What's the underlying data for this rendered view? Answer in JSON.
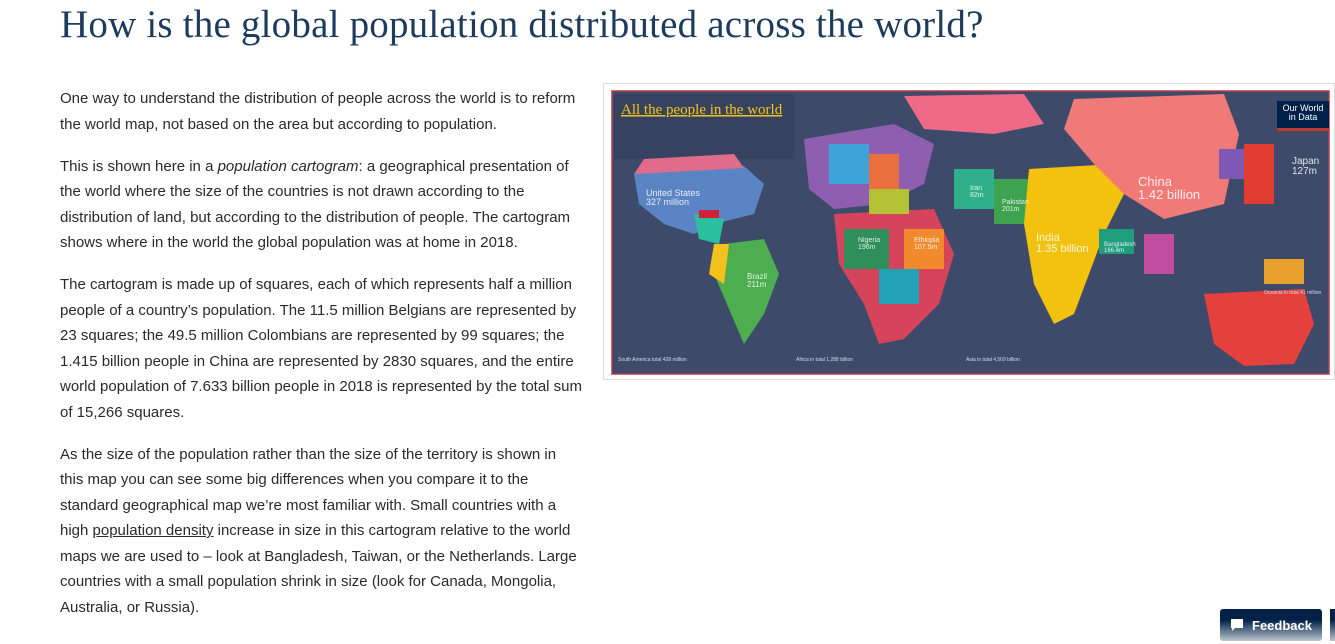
{
  "header": {
    "title": "How is the global population distributed across the world?"
  },
  "paragraphs": [
    [
      {
        "text": "One way to understand the distribution of people across the world is to reform the world map, not based on the area but according to population."
      }
    ],
    [
      {
        "text": "This is shown here in a "
      },
      {
        "text": "population cartogram",
        "em": true
      },
      {
        "text": ": a geographical presentation of the world where the size of the countries is not drawn according to the distribution of land, but according to the distribution of people. The cartogram shows where in the world the global population was at home in 2018."
      }
    ],
    [
      {
        "text": "The cartogram is made up of squares, each of which represents half a million people of a country’s population. The 11.5 million Belgians are represented by 23 squares; the 49.5 million Colombians are represented by 99 squares; the 1.415 billion people in China are represented by 2830 squares, and the entire world population of 7.633 billion people in 2018 is represented by the total sum of 15,266 squares."
      }
    ],
    [
      {
        "text": "As the size of the population rather than the size of the territory is shown in this map you can see some big differences when you compare it to the standard geographical map we’re most familiar with. Small countries with a high "
      },
      {
        "text": "population density",
        "link": true
      },
      {
        "text": " increase in size in this cartogram relative to the world maps we are used to – look at Bangladesh, Taiwan, or the Netherlands. Large countries with a small population shrink in size (look for Canada, Mongolia, Australia, or Russia)."
      }
    ]
  ],
  "map": {
    "title": "All the people in the world",
    "logo": [
      "Our World",
      "in Data"
    ],
    "labels": [
      {
        "name": "China",
        "value": "1.42 billion"
      },
      {
        "name": "India",
        "value": "1.35 billion"
      },
      {
        "name": "United States",
        "value": "327 million"
      },
      {
        "name": "Japan",
        "value": "127m"
      },
      {
        "name": "Pakistan",
        "value": "201m"
      },
      {
        "name": "Iran",
        "value": "82m"
      },
      {
        "name": "Nigeria",
        "value": "196m"
      },
      {
        "name": "Ethiopia",
        "value": "107.5m"
      },
      {
        "name": "Bangladesh",
        "value": "166.4m"
      },
      {
        "name": "Brazil",
        "value": "211m"
      }
    ],
    "totals": [
      "South America total 428 million",
      "Africa in total 1,288 billion",
      "Asia in total 4,569 billion",
      "Oceania in total 41 million"
    ]
  },
  "feedback": "Feedback"
}
